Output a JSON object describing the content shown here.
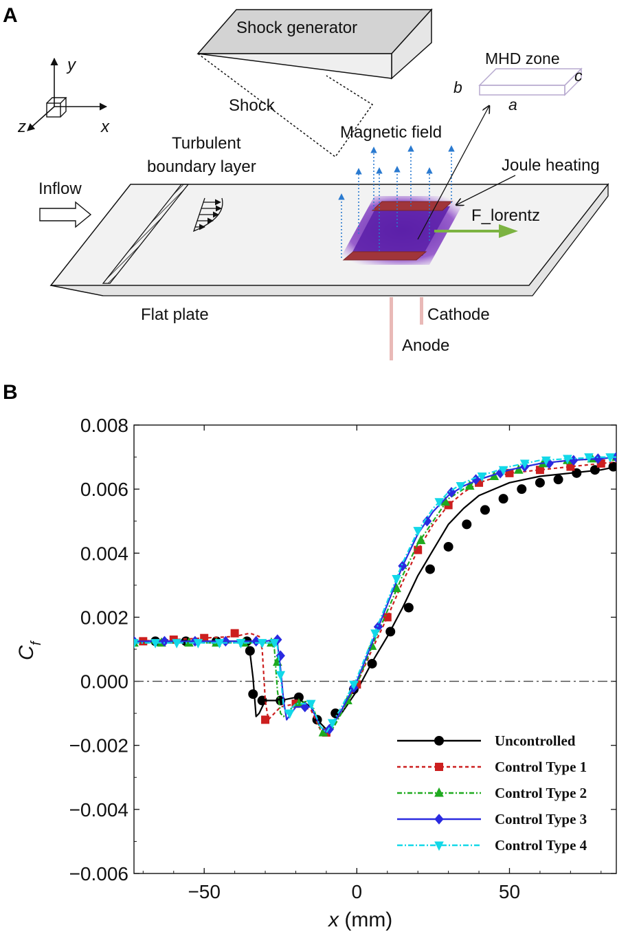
{
  "panel_a": {
    "letter": "A",
    "shock_generator": "Shock generator",
    "shock": "Shock",
    "mhd_zone": "MHD zone",
    "dim_a": "a",
    "dim_b": "b",
    "dim_c": "c",
    "axis_x": "x",
    "axis_y": "y",
    "axis_z": "z",
    "magnetic_field": "Magnetic field",
    "turbulent_line1": "Turbulent",
    "turbulent_line2": "boundary layer",
    "joule_heating": "Joule heating",
    "inflow": "Inflow",
    "f_lorentz": "F_lorentz",
    "flat_plate": "Flat plate",
    "cathode": "Cathode",
    "anode": "Anode",
    "colors": {
      "plasma": "#6a1fb0",
      "electrode": "#a0353a",
      "field_arrow": "#2a7ad0",
      "lorentz_arrow": "#7cb342",
      "plate": "#f2f2f2",
      "generator_top": "#d0d0d0"
    }
  },
  "panel_b": {
    "letter": "B",
    "chart_data": {
      "type": "line",
      "xlabel_var": "x",
      "xlabel_unit": " (mm)",
      "ylabel_main": "C",
      "ylabel_sub": "f",
      "xlim": [
        -73,
        85
      ],
      "ylim": [
        -0.006,
        0.008
      ],
      "xticks": [
        -50,
        0,
        50
      ],
      "xtick_labels": [
        "−50",
        "0",
        "50"
      ],
      "yticks": [
        -0.006,
        -0.004,
        -0.002,
        0.0,
        0.002,
        0.004,
        0.006,
        0.008
      ],
      "ytick_labels": [
        "−0.006",
        "−0.004",
        "−0.002",
        "0.000",
        "0.002",
        "0.004",
        "0.006",
        "0.008"
      ],
      "reference_line_y": 0,
      "legend_position": "bottom-right",
      "series": [
        {
          "name": "Uncontrolled",
          "color": "#000000",
          "dash": "",
          "marker": "circle",
          "x": [
            -73,
            -60,
            -45,
            -38,
            -36,
            -35,
            -34,
            -33,
            -32,
            -30,
            -28,
            -25,
            -20,
            -15,
            -12,
            -10,
            -8,
            -5,
            0,
            5,
            10,
            15,
            20,
            25,
            30,
            35,
            40,
            45,
            50,
            60,
            70,
            80,
            85
          ],
          "y": [
            0.00125,
            0.00125,
            0.00125,
            0.00125,
            0.0012,
            0.0009,
            0.0001,
            -0.0011,
            -0.001,
            -0.0006,
            -0.0006,
            -0.0006,
            -0.0005,
            -0.0008,
            -0.0013,
            -0.0015,
            -0.0013,
            -0.001,
            -0.0003,
            0.0006,
            0.0014,
            0.0023,
            0.0033,
            0.0041,
            0.0049,
            0.0054,
            0.0058,
            0.006,
            0.0062,
            0.0064,
            0.0065,
            0.0066,
            0.0067
          ],
          "marker_x": [
            -66,
            -56,
            -46,
            -36,
            -35,
            -34,
            -31,
            -25,
            -19,
            -13,
            -7,
            -1,
            5,
            11,
            17,
            24,
            30,
            36,
            42,
            48,
            54,
            60,
            66,
            72,
            78,
            84
          ],
          "marker_y": [
            0.00125,
            0.00125,
            0.00125,
            0.00125,
            0.00095,
            -0.0004,
            -0.0006,
            -0.0006,
            -0.0005,
            -0.0012,
            -0.001,
            -0.00025,
            0.00055,
            0.00155,
            0.0023,
            0.0035,
            0.0042,
            0.0049,
            0.00535,
            0.0057,
            0.006,
            0.0062,
            0.0063,
            0.0065,
            0.0066,
            0.0067
          ]
        },
        {
          "name": "Control Type 1",
          "color": "#cc1f1f",
          "dash": "5,4",
          "marker": "square",
          "x": [
            -73,
            -60,
            -50,
            -40,
            -35,
            -32,
            -31,
            -30,
            -29,
            -28,
            -25,
            -20,
            -15,
            -12,
            -10,
            -8,
            -5,
            0,
            5,
            10,
            15,
            20,
            25,
            30,
            35,
            40,
            50,
            60,
            70,
            80,
            85
          ],
          "y": [
            0.00125,
            0.0013,
            0.00135,
            0.0014,
            0.0015,
            0.0014,
            0.001,
            -0.0006,
            -0.0012,
            -0.0011,
            -0.0008,
            -0.0007,
            -0.0009,
            -0.0015,
            -0.0016,
            -0.0014,
            -0.0009,
            -0.0001,
            0.001,
            0.002,
            0.0031,
            0.0041,
            0.0049,
            0.0055,
            0.0059,
            0.0062,
            0.0065,
            0.0066,
            0.0067,
            0.0068,
            0.00685
          ],
          "marker_x": [
            -70,
            -60,
            -50,
            -40,
            -30,
            -20,
            -10,
            0,
            10,
            20,
            30,
            40,
            50,
            60,
            70,
            80
          ],
          "marker_y": [
            0.00125,
            0.0013,
            0.00135,
            0.0015,
            -0.0012,
            -0.0007,
            -0.0016,
            -0.0001,
            0.002,
            0.0041,
            0.0055,
            0.0062,
            0.0065,
            0.0066,
            0.0067,
            0.0068
          ]
        },
        {
          "name": "Control Type 2",
          "color": "#1faa1f",
          "dash": "7,3,2,3",
          "marker": "triangle-up",
          "x": [
            -73,
            -60,
            -50,
            -40,
            -30,
            -28,
            -27,
            -26,
            -25,
            -24,
            -20,
            -15,
            -12,
            -10,
            -8,
            -5,
            0,
            5,
            10,
            15,
            20,
            25,
            30,
            35,
            40,
            50,
            60,
            70,
            80,
            85
          ],
          "y": [
            0.0012,
            0.0012,
            0.0012,
            0.0012,
            0.0012,
            0.0012,
            0.001,
            -0.0003,
            -0.001,
            -0.0011,
            -0.0007,
            -0.0006,
            -0.0015,
            -0.0017,
            -0.0015,
            -0.001,
            -0.0001,
            0.0011,
            0.0022,
            0.0033,
            0.0043,
            0.005,
            0.0057,
            0.006,
            0.0063,
            0.0066,
            0.0068,
            0.0069,
            0.00695,
            0.007
          ],
          "marker_x": [
            -73,
            -64,
            -55,
            -46,
            -37,
            -28,
            -26,
            -19,
            -11,
            -3,
            5,
            13,
            21,
            29,
            37,
            45,
            53,
            61,
            69,
            77,
            85
          ],
          "marker_y": [
            0.0012,
            0.0012,
            0.0012,
            0.0012,
            0.0012,
            0.0012,
            0.0006,
            -0.0007,
            -0.0016,
            -0.0006,
            0.0011,
            0.0029,
            0.0044,
            0.0056,
            0.0061,
            0.0064,
            0.0066,
            0.0068,
            0.0069,
            0.00695,
            0.007
          ]
        },
        {
          "name": "Control Type 3",
          "color": "#2a2ae0",
          "dash": "",
          "marker": "diamond",
          "x": [
            -73,
            -60,
            -50,
            -40,
            -30,
            -27,
            -26,
            -25,
            -24,
            -23,
            -20,
            -15,
            -12,
            -10,
            -8,
            -5,
            0,
            5,
            10,
            15,
            20,
            25,
            30,
            35,
            40,
            50,
            60,
            70,
            80,
            85
          ],
          "y": [
            0.00125,
            0.00125,
            0.00125,
            0.00125,
            0.00125,
            0.0013,
            0.0012,
            0.0004,
            -0.0006,
            -0.0012,
            -0.0008,
            -0.0008,
            -0.0014,
            -0.0016,
            -0.0014,
            -0.0009,
            0.0,
            0.0012,
            0.0024,
            0.0036,
            0.0046,
            0.0053,
            0.0058,
            0.0061,
            0.0063,
            0.0066,
            0.0068,
            0.0069,
            0.00695,
            0.007
          ],
          "marker_x": [
            -73,
            -63,
            -53,
            -43,
            -33,
            -26,
            -25,
            -17,
            -9,
            -1,
            7,
            15,
            23,
            31,
            39,
            47,
            55,
            63,
            71,
            79,
            85
          ],
          "marker_y": [
            0.00125,
            0.00125,
            0.00125,
            0.00125,
            0.00125,
            0.0013,
            0.0008,
            -0.0008,
            -0.0015,
            -0.0002,
            0.0017,
            0.0036,
            0.005,
            0.0059,
            0.0063,
            0.0065,
            0.0067,
            0.0068,
            0.0069,
            0.00695,
            0.007
          ]
        },
        {
          "name": "Control Type 4",
          "color": "#12d8e8",
          "dash": "8,3,2,3",
          "marker": "triangle-down",
          "x": [
            -73,
            -60,
            -50,
            -40,
            -30,
            -27,
            -26,
            -25,
            -24,
            -23,
            -20,
            -15,
            -12,
            -10,
            -8,
            -5,
            0,
            5,
            10,
            15,
            20,
            25,
            30,
            35,
            40,
            50,
            60,
            70,
            80,
            85
          ],
          "y": [
            0.0012,
            0.0012,
            0.0012,
            0.0012,
            0.0012,
            0.0012,
            0.0011,
            0.0002,
            -0.0008,
            -0.001,
            -0.0007,
            -0.0007,
            -0.0014,
            -0.0016,
            -0.0013,
            -0.0008,
            0.0001,
            0.0013,
            0.0025,
            0.0037,
            0.0047,
            0.0054,
            0.0059,
            0.0062,
            0.0064,
            0.0067,
            0.0069,
            0.00695,
            0.007,
            0.007
          ],
          "marker_x": [
            -73,
            -66,
            -59,
            -52,
            -45,
            -38,
            -31,
            -27,
            -25,
            -22,
            -15,
            -8,
            -1,
            6,
            13,
            20,
            27,
            34,
            41,
            48,
            55,
            62,
            69,
            76,
            83
          ],
          "marker_y": [
            0.0012,
            0.0012,
            0.0012,
            0.0012,
            0.0012,
            0.0012,
            0.0012,
            0.0012,
            0.0002,
            -0.001,
            -0.0007,
            -0.0013,
            -0.0001,
            0.0015,
            0.0032,
            0.0047,
            0.0056,
            0.0061,
            0.0064,
            0.0066,
            0.0068,
            0.0069,
            0.00695,
            0.007,
            0.007
          ]
        }
      ]
    }
  }
}
